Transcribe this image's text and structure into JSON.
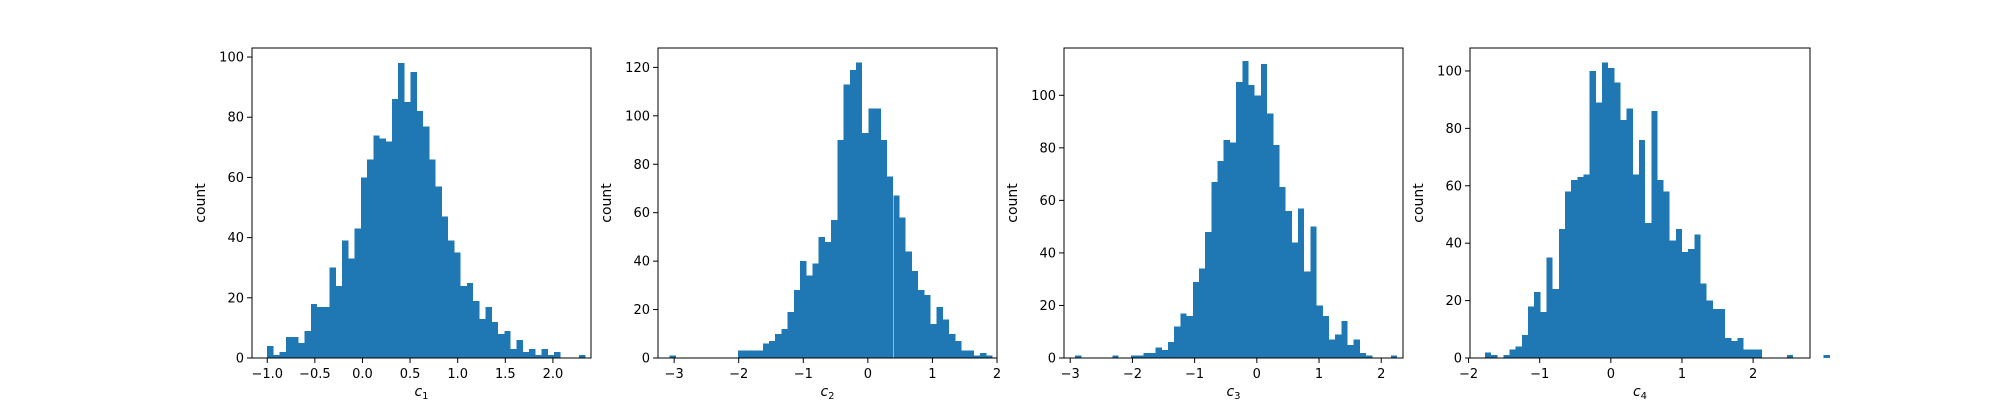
{
  "chart_data": [
    {
      "type": "bar",
      "xlabel": "c",
      "xlabel_subscript": "1",
      "ylabel": "count",
      "xlim": [
        -1.16,
        2.4
      ],
      "ylim": [
        0,
        103
      ],
      "xticks": [
        {
          "value": -1.0,
          "label": "−1.0"
        },
        {
          "value": -0.5,
          "label": "−0.5"
        },
        {
          "value": 0.0,
          "label": "0.0"
        },
        {
          "value": 0.5,
          "label": "0.5"
        },
        {
          "value": 1.0,
          "label": "1.0"
        },
        {
          "value": 1.5,
          "label": "1.5"
        },
        {
          "value": 2.0,
          "label": "2.0"
        }
      ],
      "yticks": [
        {
          "value": 0,
          "label": "0"
        },
        {
          "value": 20,
          "label": "20"
        },
        {
          "value": 40,
          "label": "40"
        },
        {
          "value": 60,
          "label": "60"
        },
        {
          "value": 80,
          "label": "80"
        },
        {
          "value": 100,
          "label": "100"
        }
      ],
      "color": "#1f77b4",
      "bin_start": -1.0,
      "bin_width": 0.0655,
      "counts": [
        4,
        1,
        2,
        7,
        7,
        5,
        9,
        18,
        17,
        17,
        30,
        24,
        39,
        33,
        43,
        60,
        66,
        74,
        73,
        72,
        86,
        98,
        85,
        95,
        82,
        77,
        66,
        57,
        47,
        39,
        35,
        24,
        25,
        19,
        13,
        17,
        12,
        8,
        9,
        3,
        6,
        2,
        3,
        1,
        3,
        1,
        2,
        0,
        0,
        0,
        1
      ]
    },
    {
      "type": "bar",
      "xlabel": "c",
      "xlabel_subscript": "2",
      "ylabel": "count",
      "xlim": [
        -3.25,
        2.0
      ],
      "ylim": [
        0,
        128
      ],
      "xticks": [
        {
          "value": -3,
          "label": "−3"
        },
        {
          "value": -2,
          "label": "−2"
        },
        {
          "value": -1,
          "label": "−1"
        },
        {
          "value": 0,
          "label": "0"
        },
        {
          "value": 1,
          "label": "1"
        },
        {
          "value": 2,
          "label": "2"
        }
      ],
      "yticks": [
        {
          "value": 0,
          "label": "0"
        },
        {
          "value": 20,
          "label": "20"
        },
        {
          "value": 40,
          "label": "40"
        },
        {
          "value": 60,
          "label": "60"
        },
        {
          "value": 80,
          "label": "80"
        },
        {
          "value": 100,
          "label": "100"
        },
        {
          "value": 120,
          "label": "120"
        }
      ],
      "color": "#1f77b4",
      "bin_start": -3.07,
      "bin_width": 0.0962,
      "counts": [
        1,
        0,
        0,
        0,
        0,
        0,
        0,
        0,
        0,
        0,
        0,
        3,
        3,
        3,
        3,
        6,
        7,
        10,
        12,
        19,
        28,
        40,
        34,
        39,
        50,
        48,
        57,
        90,
        113,
        119,
        122,
        93,
        103,
        103,
        90,
        75,
        67,
        58,
        44,
        36,
        28,
        26,
        14,
        21,
        16,
        10,
        7,
        3,
        3,
        1,
        2,
        1
      ]
    },
    {
      "type": "bar",
      "xlabel": "c",
      "xlabel_subscript": "3",
      "ylabel": "count",
      "xlim": [
        -3.1,
        2.35
      ],
      "ylim": [
        0,
        118
      ],
      "xticks": [
        {
          "value": -3,
          "label": "−3"
        },
        {
          "value": -2,
          "label": "−2"
        },
        {
          "value": -1,
          "label": "−1"
        },
        {
          "value": 0,
          "label": "0"
        },
        {
          "value": 1,
          "label": "1"
        },
        {
          "value": 2,
          "label": "2"
        }
      ],
      "yticks": [
        {
          "value": 0,
          "label": "0"
        },
        {
          "value": 20,
          "label": "20"
        },
        {
          "value": 40,
          "label": "40"
        },
        {
          "value": 60,
          "label": "60"
        },
        {
          "value": 80,
          "label": "80"
        },
        {
          "value": 100,
          "label": "100"
        }
      ],
      "color": "#1f77b4",
      "bin_start": -2.92,
      "bin_width": 0.0995,
      "counts": [
        1,
        0,
        0,
        0,
        0,
        0,
        1,
        0,
        0,
        1,
        1,
        2,
        2,
        4,
        3,
        6,
        12,
        17,
        16,
        29,
        34,
        48,
        67,
        75,
        83,
        82,
        105,
        113,
        104,
        100,
        112,
        93,
        81,
        65,
        56,
        44,
        57,
        33,
        50,
        20,
        16,
        7,
        9,
        14,
        5,
        7,
        2,
        1,
        0,
        0,
        0,
        1
      ]
    },
    {
      "type": "bar",
      "xlabel": "c",
      "xlabel_subscript": "4",
      "ylabel": "count",
      "xlim": [
        -1.98,
        2.8
      ],
      "ylim": [
        0,
        108
      ],
      "xticks": [
        {
          "value": -2,
          "label": "−2"
        },
        {
          "value": -1,
          "label": "−1"
        },
        {
          "value": 0,
          "label": "0"
        },
        {
          "value": 1,
          "label": "1"
        },
        {
          "value": 2,
          "label": "2"
        }
      ],
      "yticks": [
        {
          "value": 0,
          "label": "0"
        },
        {
          "value": 20,
          "label": "20"
        },
        {
          "value": 40,
          "label": "40"
        },
        {
          "value": 60,
          "label": "60"
        },
        {
          "value": 80,
          "label": "80"
        },
        {
          "value": 100,
          "label": "100"
        }
      ],
      "color": "#1f77b4",
      "bin_start": -1.77,
      "bin_width": 0.0866,
      "counts": [
        2,
        1,
        0,
        1,
        3,
        4,
        8,
        18,
        23,
        16,
        35,
        24,
        45,
        58,
        62,
        63,
        64,
        100,
        89,
        103,
        101,
        96,
        83,
        87,
        64,
        76,
        47,
        86,
        62,
        58,
        41,
        45,
        37,
        38,
        43,
        26,
        20,
        17,
        17,
        7,
        6,
        7,
        3,
        3,
        3,
        0,
        0,
        0,
        0,
        1,
        0,
        0,
        0,
        0,
        0,
        1
      ]
    }
  ]
}
